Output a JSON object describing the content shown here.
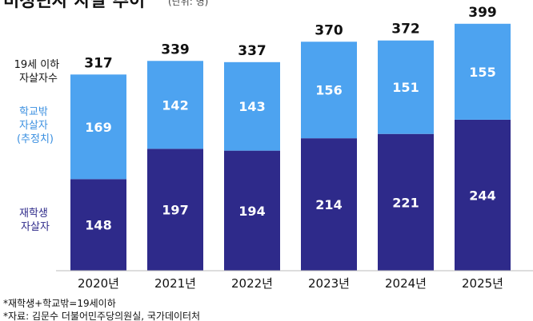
{
  "chart_data": {
    "type": "bar",
    "stacked": true,
    "title": "비청년자 자살 추이",
    "unit": "(단위: 명)",
    "categories": [
      "2020년",
      "2021년",
      "2022년",
      "2023년",
      "2024년",
      "2025년"
    ],
    "totals": [
      317,
      339,
      337,
      370,
      372,
      399
    ],
    "totals_label": [
      "19세 이하",
      "자살자수"
    ],
    "series": [
      {
        "name_lines": [
          "재학생",
          "자살자"
        ],
        "color": "#2e2a8a",
        "values": [
          148,
          197,
          194,
          214,
          221,
          244
        ]
      },
      {
        "name_lines": [
          "학교밖",
          "자살자",
          "(추정치)"
        ],
        "color": "#4da3f0",
        "values": [
          169,
          142,
          143,
          156,
          151,
          155
        ]
      }
    ],
    "ylim": [
      0,
      400
    ],
    "grid": false,
    "notes": [
      "*재학생+학교밖=19세이하",
      "*자료: 김문수 더불어민주당의원실, 국가데이터처"
    ]
  }
}
